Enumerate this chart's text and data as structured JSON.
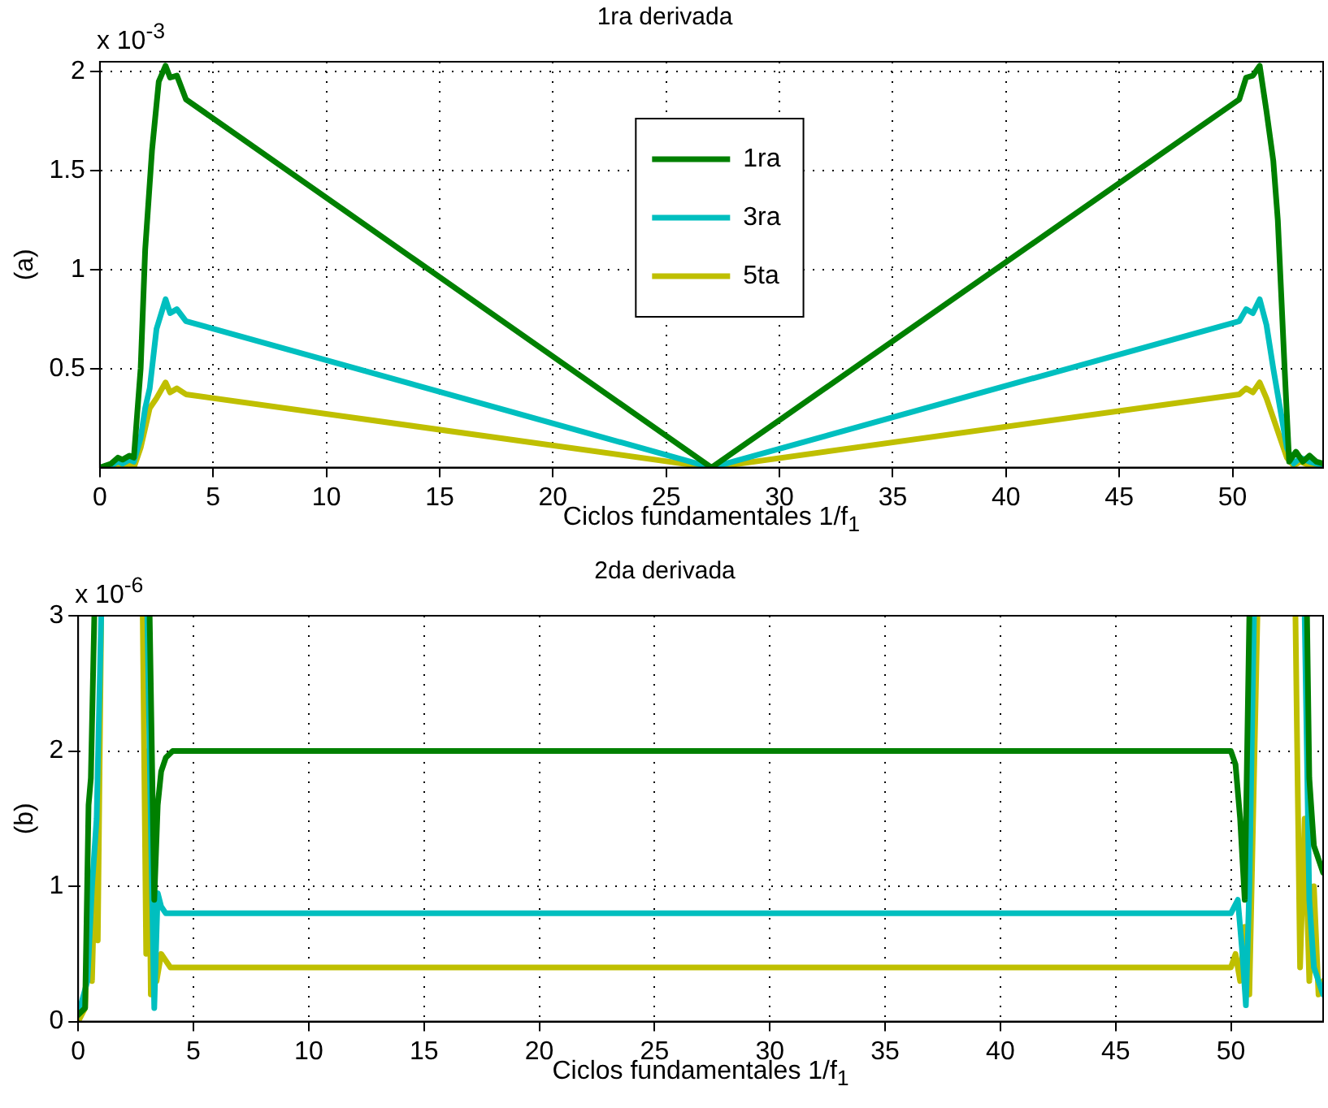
{
  "chart_data": [
    {
      "type": "line",
      "title": "1ra derivada",
      "xlabel": "Ciclos fundamentales 1/f$_{1}$",
      "ylabel": "(a)",
      "annotations": [
        "x 10$^{-3}$"
      ],
      "xlim": [
        0,
        54
      ],
      "xticks": [
        0,
        5,
        10,
        15,
        20,
        25,
        30,
        35,
        40,
        45,
        50
      ],
      "ylim": [
        0,
        2.05
      ],
      "yticks": [
        0.5,
        1,
        1.5,
        2
      ],
      "grid": true,
      "legend": "top",
      "series": [
        {
          "name": "1ra",
          "color": "#008000",
          "x": [
            0,
            0.5,
            0.8,
            1.0,
            1.3,
            1.5,
            1.8,
            2.0,
            2.3,
            2.6,
            2.9,
            3.1,
            3.4,
            3.8,
            27,
            50.3,
            50.6,
            50.9,
            51.2,
            51.5,
            51.8,
            52.0,
            52.3,
            52.5,
            52.8,
            53.1,
            53.4,
            53.7,
            54
          ],
          "values": [
            0,
            0.02,
            0.05,
            0.04,
            0.06,
            0.05,
            0.5,
            1.1,
            1.6,
            1.95,
            2.03,
            1.97,
            1.98,
            1.86,
            0,
            1.86,
            1.97,
            1.98,
            2.03,
            1.8,
            1.55,
            1.25,
            0.5,
            0.03,
            0.08,
            0.03,
            0.06,
            0.03,
            0.02
          ]
        },
        {
          "name": "3ra",
          "color": "#00bfbf",
          "x": [
            0,
            0.5,
            0.8,
            1.0,
            1.3,
            1.5,
            1.8,
            2.0,
            2.2,
            2.5,
            2.9,
            3.1,
            3.4,
            3.8,
            27,
            50.3,
            50.6,
            50.9,
            51.2,
            51.5,
            51.8,
            52.1,
            52.4,
            52.7,
            53.0,
            53.4,
            54
          ],
          "values": [
            0,
            0.01,
            0.03,
            0.02,
            0.04,
            0.03,
            0.15,
            0.3,
            0.4,
            0.7,
            0.85,
            0.78,
            0.8,
            0.74,
            0,
            0.74,
            0.8,
            0.78,
            0.85,
            0.72,
            0.5,
            0.3,
            0.1,
            0.02,
            0.05,
            0.03,
            0.01
          ]
        },
        {
          "name": "5ta",
          "color": "#bfbf00",
          "x": [
            0,
            0.8,
            1.3,
            1.5,
            1.8,
            2.0,
            2.2,
            2.5,
            2.9,
            3.1,
            3.4,
            3.8,
            27,
            50.3,
            50.6,
            50.9,
            51.2,
            51.5,
            51.8,
            52.1,
            52.4,
            52.7,
            53.0,
            53.4,
            54
          ],
          "values": [
            0,
            0,
            0.02,
            0,
            0.1,
            0.2,
            0.3,
            0.35,
            0.43,
            0.38,
            0.4,
            0.37,
            0,
            0.37,
            0.4,
            0.38,
            0.43,
            0.35,
            0.25,
            0.15,
            0.05,
            0.01,
            0.03,
            0.01,
            0
          ]
        }
      ]
    },
    {
      "type": "line",
      "title": "2da derivada",
      "xlabel": "Ciclos fundamentales 1/f$_{1}$",
      "ylabel": "(b)",
      "annotations": [
        "x 10$^{-6}$"
      ],
      "xlim": [
        0,
        54
      ],
      "xticks": [
        0,
        5,
        10,
        15,
        20,
        25,
        30,
        35,
        40,
        45,
        50
      ],
      "ylim": [
        0,
        3
      ],
      "yticks": [
        0,
        1,
        2,
        3
      ],
      "grid": true,
      "series": [
        {
          "color": "#008000",
          "x": [
            0,
            0.3,
            0.45,
            0.55,
            0.7,
            1.5,
            3.1,
            3.3,
            3.45,
            3.6,
            3.8,
            4.1,
            50.0,
            50.2,
            50.4,
            50.6,
            50.8,
            52,
            53.3,
            53.4,
            53.6,
            54
          ],
          "values": [
            0.05,
            0.1,
            1.6,
            1.8,
            3,
            null,
            3,
            0.9,
            1.6,
            1.85,
            1.95,
            2.0,
            2.0,
            1.9,
            1.5,
            0.9,
            3,
            null,
            3,
            1.8,
            1.3,
            1.1
          ]
        },
        {
          "color": "#00bfbf",
          "x": [
            0,
            0.4,
            0.6,
            0.8,
            1.0,
            2.0,
            3.0,
            3.2,
            3.3,
            3.45,
            3.6,
            3.8,
            50.0,
            50.3,
            50.5,
            50.65,
            50.8,
            51.0,
            52,
            53.2,
            53.4,
            53.6,
            54
          ],
          "values": [
            0.05,
            0.3,
            1.0,
            1.5,
            3,
            null,
            3,
            1.0,
            0.1,
            0.95,
            0.85,
            0.8,
            0.8,
            0.9,
            0.5,
            0.12,
            1.0,
            3,
            null,
            3,
            0.9,
            0.4,
            0.2
          ]
        },
        {
          "color": "#bfbf00",
          "x": [
            0,
            0.3,
            0.5,
            0.6,
            0.75,
            0.85,
            1.0,
            2.0,
            2.8,
            2.95,
            3.05,
            3.15,
            3.25,
            3.4,
            3.6,
            4.0,
            50.0,
            50.2,
            50.4,
            50.6,
            50.8,
            51.15,
            52,
            52.8,
            53.0,
            53.2,
            53.4,
            53.6,
            53.8,
            54
          ],
          "values": [
            0,
            0.1,
            1.0,
            0.3,
            1.3,
            0.6,
            3,
            null,
            3,
            0.5,
            2.0,
            0.2,
            1.0,
            0.3,
            0.5,
            0.4,
            0.4,
            0.5,
            0.3,
            0.7,
            0.2,
            3,
            null,
            3,
            0.4,
            1.5,
            0.3,
            1.0,
            0.2,
            0.3
          ]
        }
      ]
    }
  ]
}
